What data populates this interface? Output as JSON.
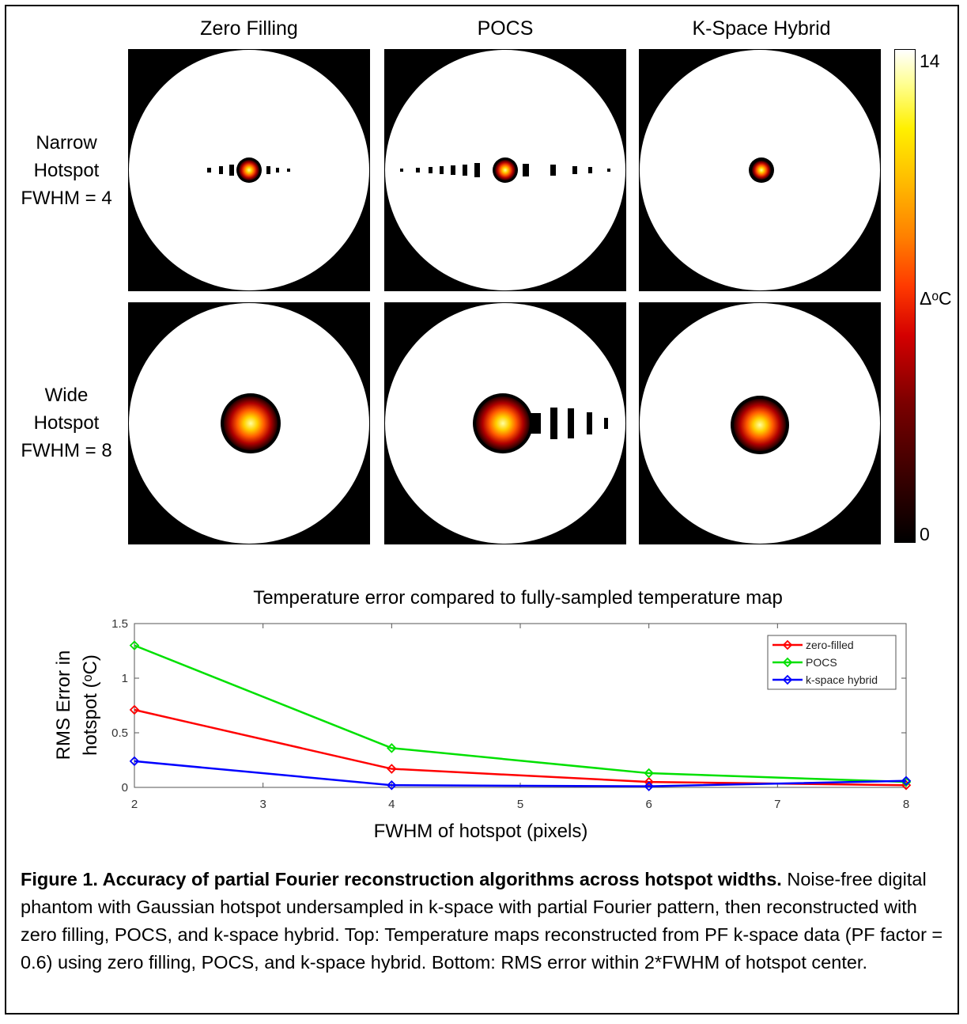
{
  "figure": {
    "column_titles": [
      "Zero Filling",
      "POCS",
      "K-Space Hybrid"
    ],
    "rows": [
      {
        "label_lines": [
          "Narrow",
          "Hotspot",
          "FWHM = 4"
        ]
      },
      {
        "label_lines": [
          "Wide",
          "Hotspot",
          "FWHM = 8"
        ]
      }
    ],
    "colorbar": {
      "max_label": "14",
      "unit_label": "ΔᵒC",
      "min_label": "0"
    }
  },
  "chart_title": "Temperature error compared to fully-sampled temperature map",
  "chart_data": {
    "type": "line",
    "title": "Temperature error compared to fully-sampled temperature map",
    "xlabel": "FWHM of hotspot (pixels)",
    "ylabel_lines": [
      "RMS Error in",
      "hotspot (ᵒC)"
    ],
    "x": [
      2,
      4,
      6,
      8
    ],
    "xlim": [
      2,
      8
    ],
    "ylim": [
      0,
      1.5
    ],
    "xticks": [
      2,
      3,
      4,
      5,
      6,
      7,
      8
    ],
    "yticks": [
      0,
      0.5,
      1,
      1.5
    ],
    "ytick_labels": [
      "0",
      "0.5",
      "1",
      "1.5"
    ],
    "legend_position": "top-right",
    "series": [
      {
        "name": "zero-filled",
        "color": "#ff0000",
        "values": [
          0.71,
          0.17,
          0.05,
          0.02
        ]
      },
      {
        "name": "POCS",
        "color": "#00e000",
        "values": [
          1.3,
          0.36,
          0.13,
          0.05
        ]
      },
      {
        "name": "k-space hybrid",
        "color": "#0000ff",
        "values": [
          0.24,
          0.02,
          0.01,
          0.06
        ]
      }
    ]
  },
  "caption": {
    "bold": "Figure 1. Accuracy of partial Fourier reconstruction algorithms across hotspot widths.",
    "text": " Noise-free digital phantom with Gaussian hotspot undersampled in k-space with partial Fourier pattern, then reconstructed with zero filling, POCS, and k-space hybrid. Top: Temperature maps reconstructed from PF k-space data (PF factor = 0.6) using zero filling, POCS, and k-space hybrid. Bottom: RMS error within 2*FWHM of hotspot center."
  },
  "colors": {
    "hot_center": "#ffff66",
    "hot_mid": "#ff6a00",
    "hot_edge": "#3a0000"
  }
}
